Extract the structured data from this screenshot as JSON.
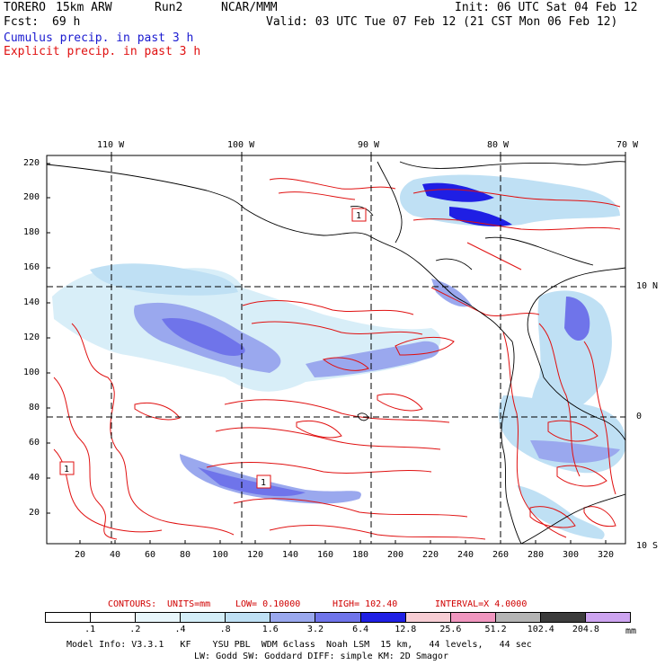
{
  "header": {
    "model": "TORERO",
    "resolution": "15km ARW",
    "run": "Run2",
    "org": "NCAR/MMM",
    "init": "Init: 06 UTC Sat 04 Feb 12",
    "fcst_label": "Fcst:",
    "fcst_value": "69 h",
    "valid": "Valid: 03 UTC Tue 07 Feb 12 (21 CST Mon 06 Feb 12)",
    "legend_cumulus": "Cumulus precip. in past 3 h",
    "legend_explicit": "Explicit precip. in past 3 h"
  },
  "map": {
    "top_lon_labels": [
      "110 W",
      "100 W",
      "90 W",
      "80 W",
      "70 W"
    ],
    "left_y_labels": [
      "220",
      "200",
      "180",
      "160",
      "140",
      "120",
      "100",
      "80",
      "60",
      "40",
      "20"
    ],
    "bottom_x_labels": [
      "20",
      "40",
      "60",
      "80",
      "100",
      "120",
      "140",
      "160",
      "180",
      "200",
      "220",
      "240",
      "260",
      "280",
      "300",
      "320"
    ],
    "right_lat_labels": [
      "10 N",
      "0",
      "10 S"
    ],
    "box_label": "1"
  },
  "contours": {
    "label": "CONTOURS:",
    "units": "UNITS=mm",
    "low": "LOW= 0.10000",
    "high": "HIGH= 102.40",
    "interval": "INTERVAL=X 4.0000"
  },
  "colorbar": {
    "levels": [
      ".1",
      ".2",
      ".4",
      ".8",
      "1.6",
      "3.2",
      "6.4",
      "12.8",
      "25.6",
      "51.2",
      "102.4",
      "204.8"
    ],
    "unit": "mm",
    "colors": [
      "#ffffff",
      "#ffffff",
      "#e8f6fb",
      "#d4eef8",
      "#bfe0f4",
      "#9aa8ee",
      "#6f74ea",
      "#1f1fe4",
      "#f7cdd4",
      "#f096bf",
      "#b4b4b4",
      "#3c3c3c",
      "#cda4f0"
    ]
  },
  "footer": {
    "line1": "Model Info: V3.3.1   KF    YSU PBL  WDM 6class  Noah LSM  15 km,   44 levels,   44 sec",
    "line2": "LW: Godd SW: Goddard DIFF: simple KM: 2D Smagor"
  }
}
